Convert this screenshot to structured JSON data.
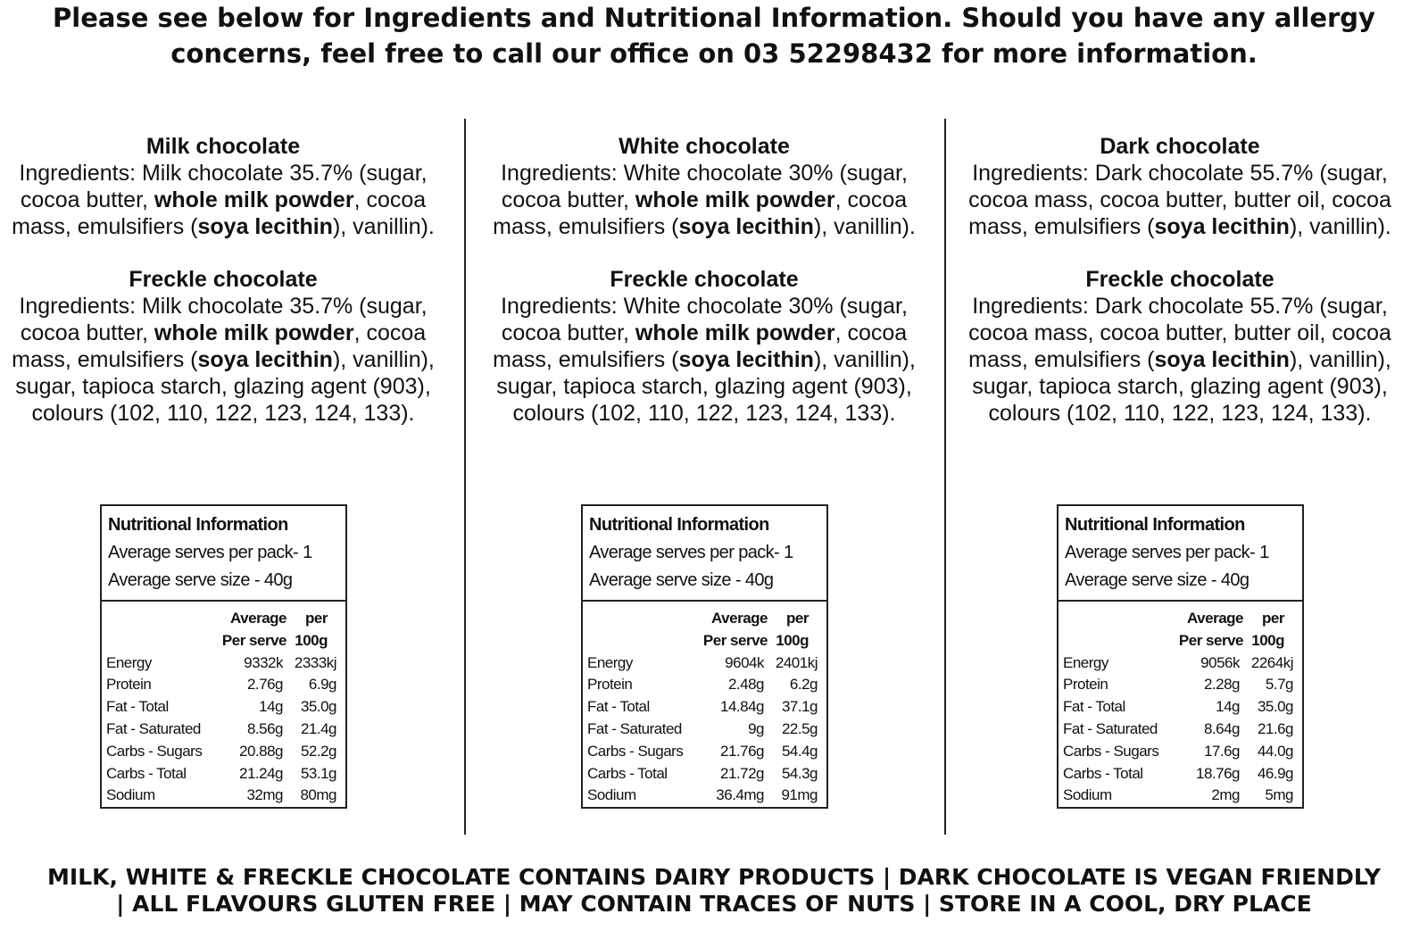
{
  "header": {
    "lines": [
      "Please see below for Ingredients and Nutritional Information. Should you have any allergy",
      "concerns, feel free to call our office on 03 52298432 for more information."
    ]
  },
  "columns": [
    {
      "sections": [
        {
          "title": "Milk chocolate",
          "ingredients": [
            {
              "text": "Ingredients: Milk chocolate 35.7% (sugar, cocoa butter, ",
              "bold": false
            },
            {
              "text": "whole milk powder",
              "bold": true
            },
            {
              "text": ", cocoa mass, emulsifiers (",
              "bold": false
            },
            {
              "text": "soya lecithin",
              "bold": true
            },
            {
              "text": "), vanillin).",
              "bold": false
            }
          ]
        },
        {
          "title": "Freckle chocolate",
          "ingredients": [
            {
              "text": "Ingredients: Milk chocolate 35.7% (sugar, cocoa butter, ",
              "bold": false
            },
            {
              "text": "whole milk powder",
              "bold": true
            },
            {
              "text": ", cocoa mass, emulsifiers (",
              "bold": false
            },
            {
              "text": "soya lecithin",
              "bold": true
            },
            {
              "text": "), vanillin), sugar, tapioca starch, glazing agent (903), colours (102, 110, 122, 123, 124, 133).",
              "bold": false
            }
          ]
        }
      ],
      "nutrition": {
        "title": "Nutritional Information",
        "lines": [
          "Average serves per pack- 1",
          "Average serve size - 40g"
        ],
        "headers": [
          [
            "Average",
            "Per serve"
          ],
          [
            "per",
            "100g"
          ]
        ],
        "rows": [
          [
            "Energy",
            "9332k",
            "2333kj"
          ],
          [
            "Protein",
            "2.76g",
            "6.9g"
          ],
          [
            "Fat - Total",
            "14g",
            "35.0g"
          ],
          [
            "Fat - Saturated",
            "8.56g",
            "21.4g"
          ],
          [
            "Carbs - Sugars",
            "20.88g",
            "52.2g"
          ],
          [
            "Carbs - Total",
            "21.24g",
            "53.1g"
          ],
          [
            "Sodium",
            "32mg",
            "80mg"
          ]
        ]
      }
    },
    {
      "sections": [
        {
          "title": "White chocolate",
          "ingredients": [
            {
              "text": "Ingredients: White chocolate 30% (sugar, cocoa butter, ",
              "bold": false
            },
            {
              "text": "whole milk powder",
              "bold": true
            },
            {
              "text": ", cocoa mass, emulsifiers (",
              "bold": false
            },
            {
              "text": "soya lecithin",
              "bold": true
            },
            {
              "text": "), vanillin).",
              "bold": false
            }
          ]
        },
        {
          "title": "Freckle chocolate",
          "ingredients": [
            {
              "text": "Ingredients: White chocolate 30% (sugar, cocoa butter, ",
              "bold": false
            },
            {
              "text": "whole milk powder",
              "bold": true
            },
            {
              "text": ", cocoa mass, emulsifiers (",
              "bold": false
            },
            {
              "text": "soya lecithin",
              "bold": true
            },
            {
              "text": "), vanillin), sugar, tapioca starch, glazing agent (903), colours (102, 110, 122, 123, 124, 133).",
              "bold": false
            }
          ]
        }
      ],
      "nutrition": {
        "title": "Nutritional Information",
        "lines": [
          "Average serves per pack- 1",
          "Average serve size - 40g"
        ],
        "headers": [
          [
            "Average",
            "Per serve"
          ],
          [
            "per",
            "100g"
          ]
        ],
        "rows": [
          [
            "Energy",
            "9604k",
            "2401kj"
          ],
          [
            "Protein",
            "2.48g",
            "6.2g"
          ],
          [
            "Fat - Total",
            "14.84g",
            "37.1g"
          ],
          [
            "Fat - Saturated",
            "9g",
            "22.5g"
          ],
          [
            "Carbs - Sugars",
            "21.76g",
            "54.4g"
          ],
          [
            "Carbs - Total",
            "21.72g",
            "54.3g"
          ],
          [
            "Sodium",
            "36.4mg",
            "91mg"
          ]
        ]
      }
    },
    {
      "sections": [
        {
          "title": "Dark chocolate",
          "ingredients": [
            {
              "text": "Ingredients: Dark chocolate 55.7% (sugar, cocoa mass, cocoa butter, butter oil, cocoa mass, emulsifiers (",
              "bold": false
            },
            {
              "text": "soya lecithin",
              "bold": true
            },
            {
              "text": "), vanillin).",
              "bold": false
            }
          ]
        },
        {
          "title": "Freckle chocolate",
          "ingredients": [
            {
              "text": "Ingredients: Dark chocolate 55.7% (sugar, cocoa mass, cocoa butter, butter oil, cocoa mass, emulsifiers (",
              "bold": false
            },
            {
              "text": "soya lecithin",
              "bold": true
            },
            {
              "text": "), vanillin), sugar, tapioca starch, glazing agent (903), colours (102, 110, 122, 123, 124, 133).",
              "bold": false
            }
          ]
        }
      ],
      "nutrition": {
        "title": "Nutritional Information",
        "lines": [
          "Average serves per pack- 1",
          "Average serve size - 40g"
        ],
        "headers": [
          [
            "Average",
            "Per serve"
          ],
          [
            "per",
            "100g"
          ]
        ],
        "rows": [
          [
            "Energy",
            "9056k",
            "2264kj"
          ],
          [
            "Protein",
            "2.28g",
            "5.7g"
          ],
          [
            "Fat - Total",
            "14g",
            "35.0g"
          ],
          [
            "Fat - Saturated",
            "8.64g",
            "21.6g"
          ],
          [
            "Carbs - Sugars",
            "17.6g",
            "44.0g"
          ],
          [
            "Carbs - Total",
            "18.76g",
            "46.9g"
          ],
          [
            "Sodium",
            "2mg",
            "5mg"
          ]
        ]
      }
    }
  ],
  "footer": {
    "lines": [
      "MILK, WHITE & FRECKLE CHOCOLATE CONTAINS DAIRY PRODUCTS | DARK CHOCOLATE IS VEGAN FRIENDLY",
      "| ALL FLAVOURS GLUTEN FREE | MAY CONTAIN TRACES OF NUTS | STORE IN A COOL, DRY PLACE"
    ]
  }
}
